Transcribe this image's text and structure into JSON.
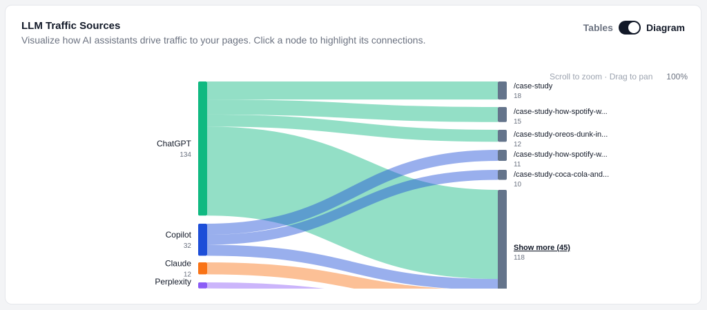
{
  "header": {
    "title": "LLM Traffic Sources",
    "subtitle": "Visualize how AI assistants drive traffic to your pages. Click a node to highlight its connections."
  },
  "view_toggle": {
    "tables_label": "Tables",
    "diagram_label": "Diagram",
    "active": "Diagram"
  },
  "canvas": {
    "hint": "Scroll to zoom · Drag to pan",
    "zoom": "100%"
  },
  "colors": {
    "chatgpt": "#10b981",
    "copilot": "#1d4ed8",
    "claude": "#f97316",
    "perplexity": "#8b5cf6",
    "target_node": "#64748b"
  },
  "sources": [
    {
      "id": "chatgpt",
      "label": "ChatGPT",
      "value": "134",
      "icon": "chatgpt-node"
    },
    {
      "id": "copilot",
      "label": "Copilot",
      "value": "32",
      "icon": "copilot-node"
    },
    {
      "id": "claude",
      "label": "Claude",
      "value": "12",
      "icon": "claude-node"
    },
    {
      "id": "perplexity",
      "label": "Perplexity",
      "value": "",
      "icon": "perplexity-node"
    }
  ],
  "targets": [
    {
      "id": "t1",
      "label": "/case-study",
      "value": "18"
    },
    {
      "id": "t2",
      "label": "/case-study-how-spotify-w...",
      "value": "15"
    },
    {
      "id": "t3",
      "label": "/case-study-oreos-dunk-in...",
      "value": "12"
    },
    {
      "id": "t4",
      "label": "/case-study-how-spotify-w...",
      "value": "11"
    },
    {
      "id": "t5",
      "label": "/case-study-coca-cola-and...",
      "value": "10"
    },
    {
      "id": "more",
      "label": "Show more (45)",
      "value": "118"
    }
  ],
  "links": [
    {
      "source": "chatgpt",
      "target": "t1",
      "value": 18
    },
    {
      "source": "chatgpt",
      "target": "t2",
      "value": 15
    },
    {
      "source": "chatgpt",
      "target": "t3",
      "value": 12
    },
    {
      "source": "chatgpt",
      "target": "more",
      "value": 89
    },
    {
      "source": "copilot",
      "target": "t4",
      "value": 11
    },
    {
      "source": "copilot",
      "target": "t5",
      "value": 10
    },
    {
      "source": "copilot",
      "target": "more",
      "value": 11
    },
    {
      "source": "claude",
      "target": "more",
      "value": 12
    },
    {
      "source": "perplexity",
      "target": "more",
      "value": 6
    }
  ]
}
